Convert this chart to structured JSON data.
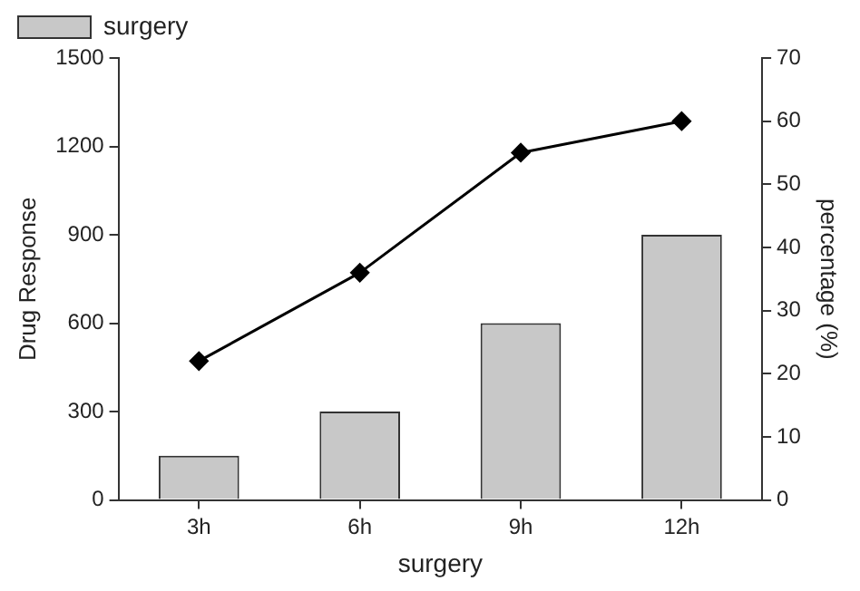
{
  "chart_data": {
    "type": "bar",
    "xlabel": "surgery",
    "ylabel": "Drug Response",
    "y2label": "percentage (%)",
    "categories": [
      "3h",
      "6h",
      "9h",
      "12h"
    ],
    "series": [
      {
        "name": "surgery",
        "color": "#c8c8c8",
        "values": [
          150,
          300,
          600,
          900
        ]
      },
      {
        "type": "line",
        "axis": "y2",
        "color": "#000000",
        "values": [
          22,
          36,
          55,
          60
        ]
      }
    ],
    "ylim": [
      0,
      1500
    ],
    "yticks": [
      0,
      300,
      600,
      900,
      1200,
      1500
    ],
    "y2lim": [
      0,
      70
    ],
    "y2ticks": [
      0,
      10,
      20,
      30,
      40,
      50,
      60,
      70
    ],
    "grid": false,
    "legend": "top left",
    "marker": "diamond",
    "line_style": "solid"
  }
}
